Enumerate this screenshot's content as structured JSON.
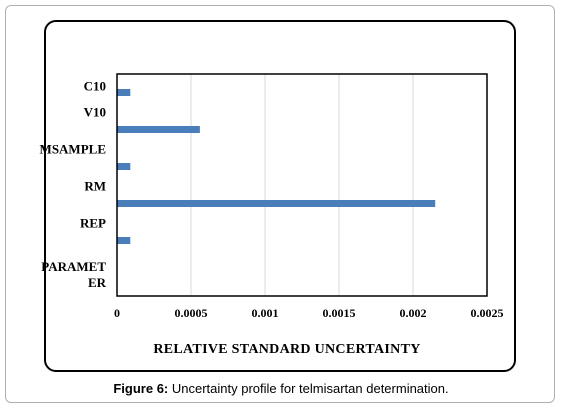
{
  "chart_data": {
    "type": "bar",
    "orientation": "horizontal",
    "categories": [
      "C10",
      "V10",
      "MSAMPLE",
      "RM",
      "REP",
      "PARAMETER"
    ],
    "category_display": [
      [
        "C10"
      ],
      [
        "V10"
      ],
      [
        "MSAMPLE"
      ],
      [
        "RM"
      ],
      [
        "REP"
      ],
      [
        "PARAMET",
        "ER"
      ]
    ],
    "values": [
      9e-05,
      0.00056,
      9e-05,
      0.00215,
      9e-05,
      null
    ],
    "xlabel": "RELATIVE STANDARD UNCERTAINTY",
    "ylabel": "",
    "xlim": [
      0,
      0.0025
    ],
    "xticks": [
      0,
      0.0005,
      0.001,
      0.0015,
      0.002,
      0.0025
    ],
    "xtick_labels": [
      "0",
      "0.0005",
      "0.001",
      "0.0015",
      "0.002",
      "0.0025"
    ],
    "grid": "vertical",
    "bar_color": "#4a7ebb",
    "grid_color": "#d9d9d9"
  },
  "caption": {
    "label": "Figure 6:",
    "text": " Uncertainty profile for telmisartan determination."
  }
}
